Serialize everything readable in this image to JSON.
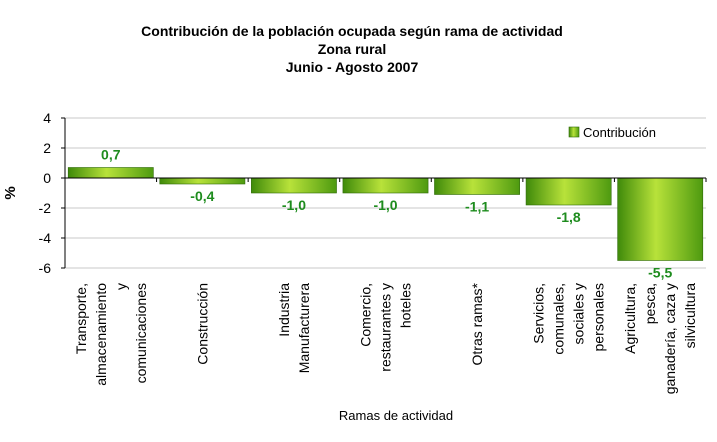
{
  "chart_data": {
    "type": "bar",
    "title": [
      "Contribución de la población ocupada según rama de actividad",
      "Zona rural",
      "Junio - Agosto 2007"
    ],
    "categories": [
      [
        "Transporte,",
        "almacenamiento",
        "y",
        "comunicaciones"
      ],
      [
        "Construcción"
      ],
      [
        "Industria",
        "Manufacturera"
      ],
      [
        "Comercio,",
        "restaurantes y",
        "hoteles"
      ],
      [
        "Otras ramas*"
      ],
      [
        "Servicios,",
        "comunales,",
        "sociales y",
        "personales"
      ],
      [
        "Agricultura,",
        "pesca,",
        "ganadería, caza y",
        "silvicultura"
      ]
    ],
    "series": [
      {
        "name": "Contribución",
        "values": [
          0.7,
          -0.4,
          -1.0,
          -1.0,
          -1.1,
          -1.8,
          -5.5
        ]
      }
    ],
    "value_labels": [
      "0,7",
      "-0,4",
      "-1,0",
      "-1,0",
      "-1,1",
      "-1,8",
      "-5,5"
    ],
    "xlabel": "Ramas de actividad",
    "ylabel": "%",
    "ylim": [
      -6,
      4
    ],
    "yticks": [
      4,
      2,
      0,
      -2,
      -4,
      -6
    ],
    "grid": true,
    "legend": "top-right",
    "colors": {
      "bar_light": "#b8e23a",
      "bar_dark": "#3f8a0a",
      "label": "#1e8c1e",
      "grid": "#c8c8c8",
      "axis": "#000000"
    }
  }
}
